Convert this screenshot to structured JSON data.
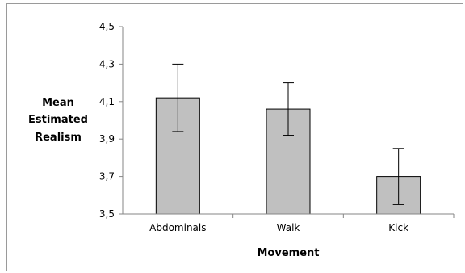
{
  "chart_data": {
    "type": "bar",
    "title": "",
    "xlabel": "Movement",
    "ylabel_lines": [
      "Mean",
      "Estimated",
      "Realism"
    ],
    "categories": [
      "Abdominals",
      "Walk",
      "Kick"
    ],
    "values": [
      4.12,
      4.06,
      3.7
    ],
    "error_low": [
      3.94,
      3.92,
      3.55
    ],
    "error_high": [
      4.3,
      4.2,
      3.85
    ],
    "ylim": [
      3.5,
      4.5
    ],
    "yticks": [
      3.5,
      3.7,
      3.9,
      4.1,
      4.3,
      4.5
    ],
    "ytick_labels": [
      "3,5",
      "3,7",
      "3,9",
      "4,1",
      "4,3",
      "4,5"
    ],
    "grid": false,
    "legend": "none",
    "bar_color": "#c0c0c0",
    "bar_outline": "#000000",
    "axis_color": "#868686"
  }
}
